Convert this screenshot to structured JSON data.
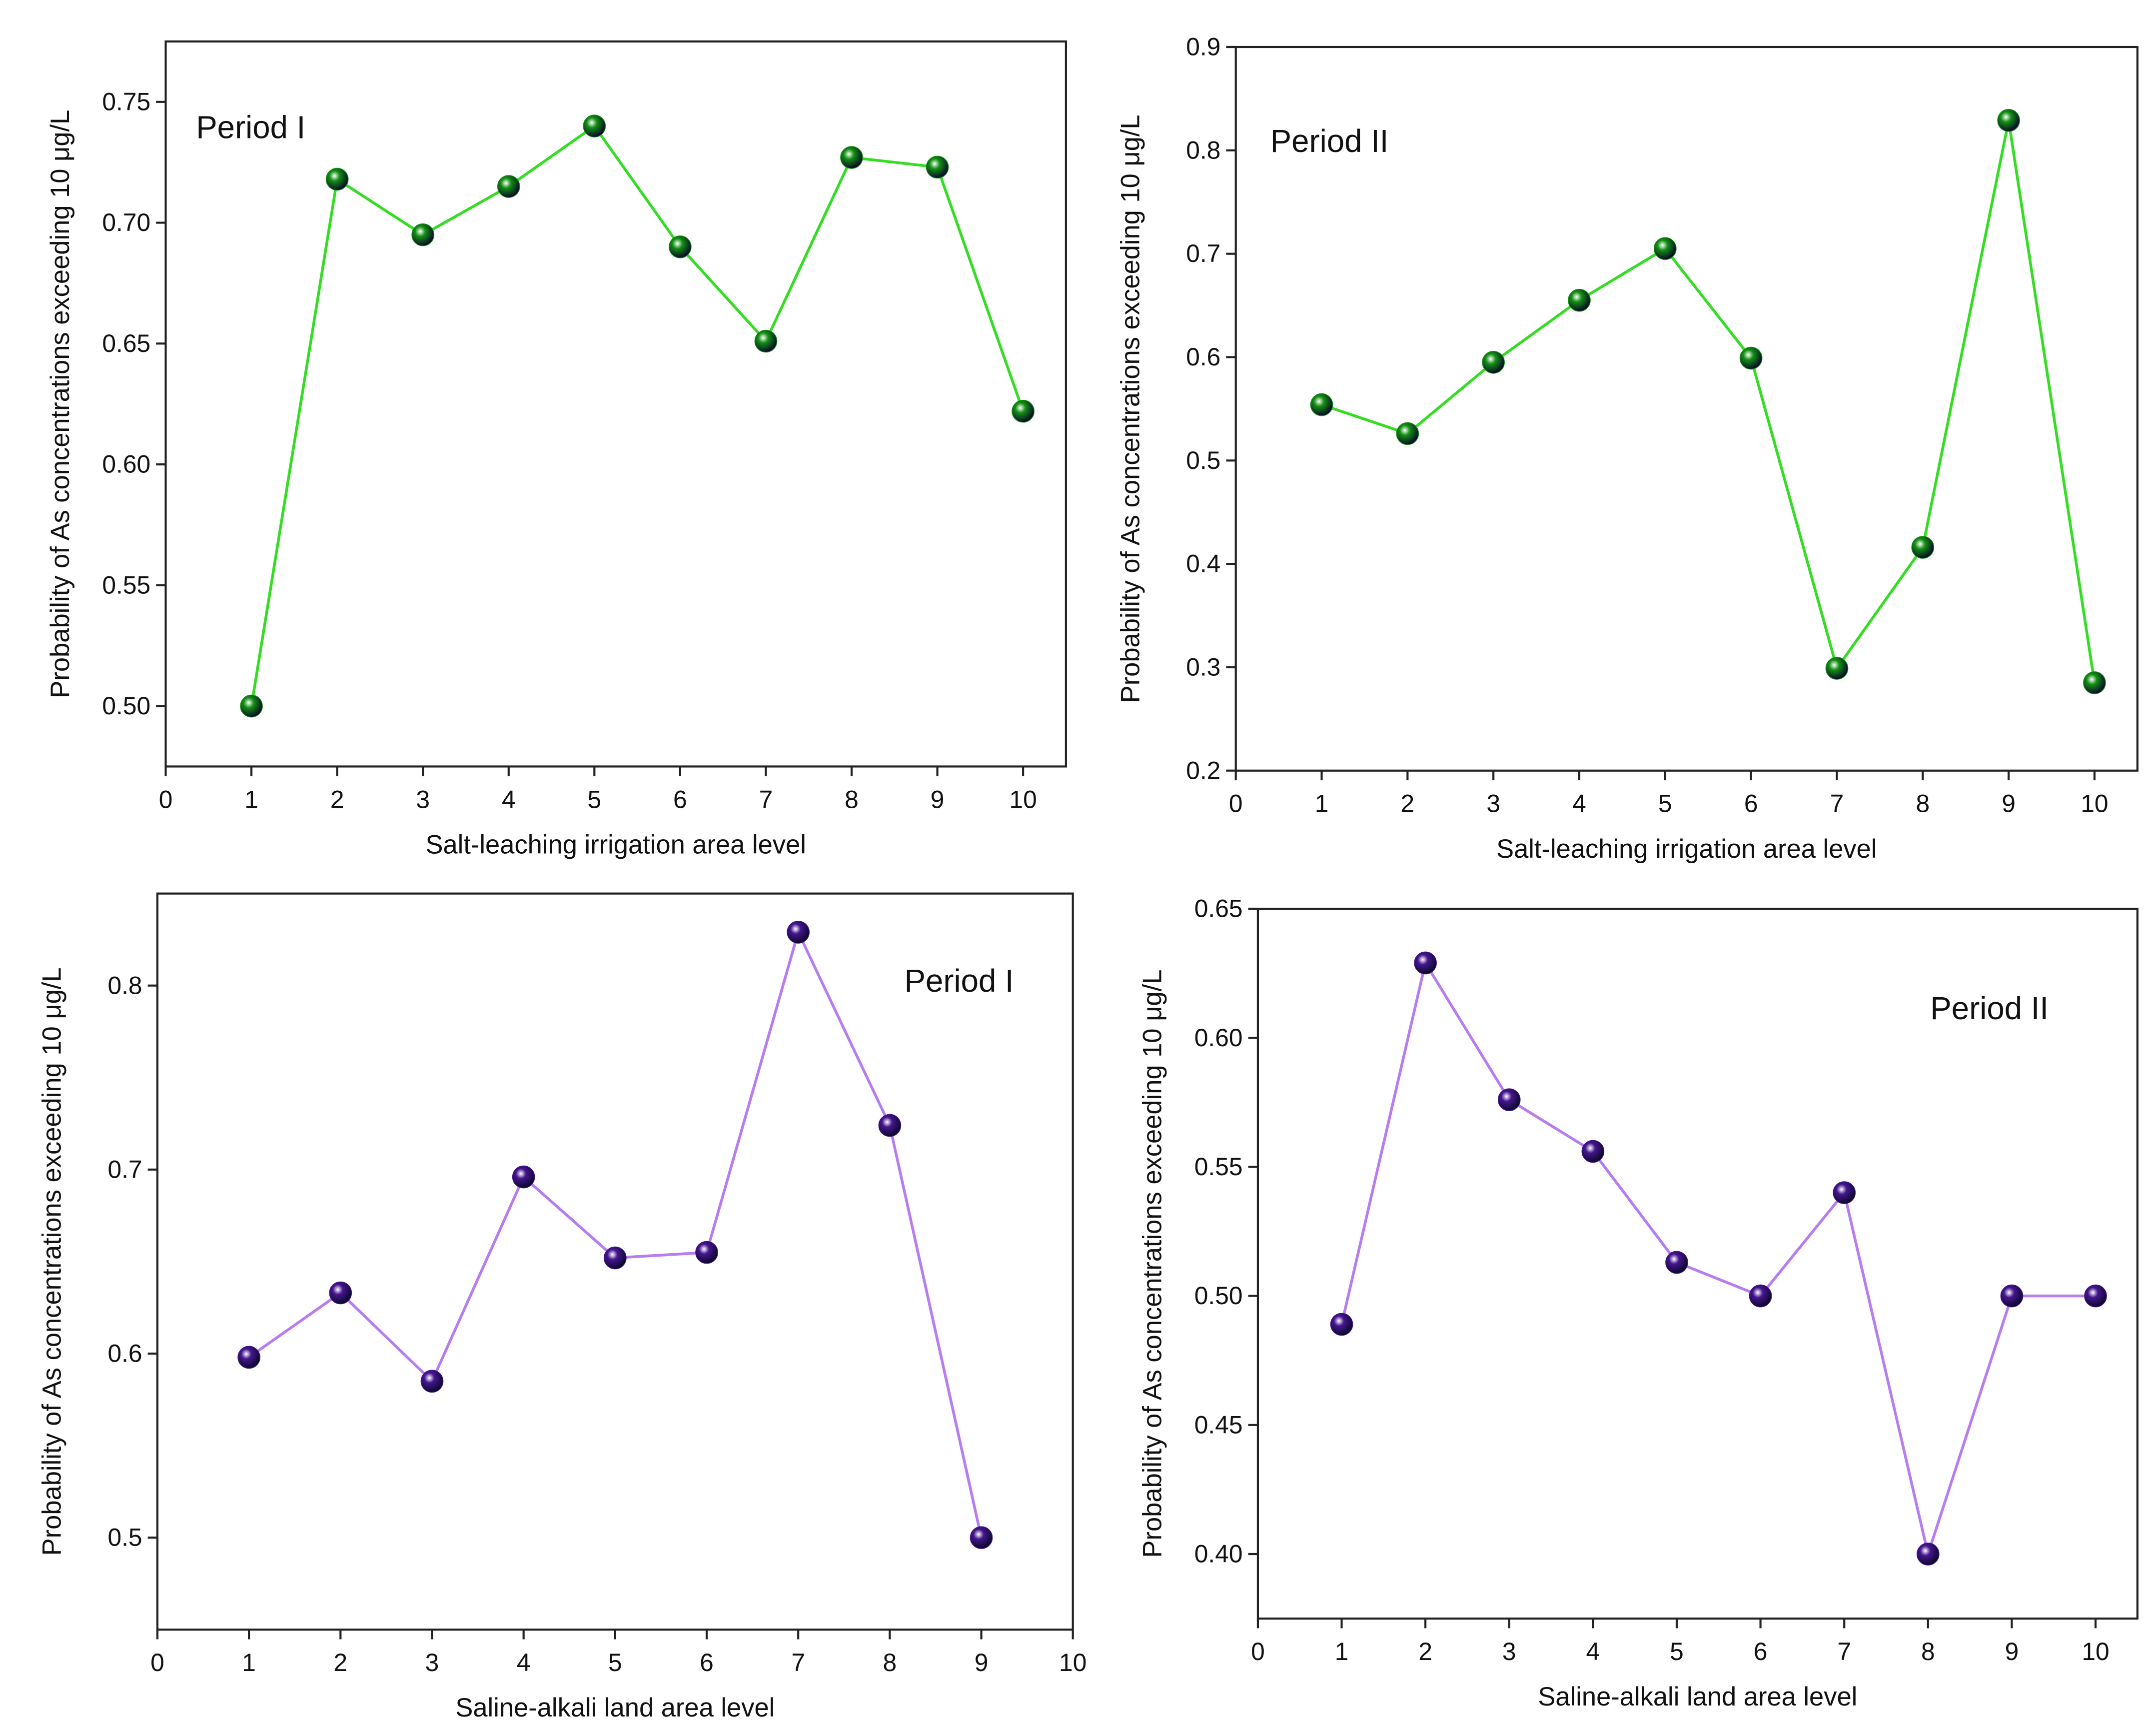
{
  "chart_data": [
    {
      "type": "line",
      "annotation": "Period I",
      "xlabel": "Salt-leaching irrigation area level",
      "ylabel": "Probability of As concentrations exceeding 10 μg/L",
      "x": [
        1,
        2,
        3,
        4,
        5,
        6,
        7,
        8,
        9,
        10
      ],
      "values": [
        0.5,
        0.718,
        0.695,
        0.715,
        0.74,
        0.69,
        0.651,
        0.727,
        0.723,
        0.622
      ],
      "color": "#33dd22",
      "marker_color": "#139013",
      "xlim": [
        0,
        10.5
      ],
      "ylim": [
        0.475,
        0.775
      ],
      "xticks": [
        0,
        1,
        2,
        3,
        4,
        5,
        6,
        7,
        8,
        9,
        10
      ],
      "yticks": [
        {
          "value": 0.5,
          "label": "0.50"
        },
        0.55,
        {
          "value": 0.6,
          "label": "0.60"
        },
        0.65,
        {
          "value": 0.7,
          "label": "0.70"
        },
        0.75
      ]
    },
    {
      "type": "line",
      "annotation": "Period II",
      "xlabel": "Salt-leaching irrigation area level",
      "ylabel": "Probability of As concentrations exceeding 10 μg/L",
      "x": [
        1,
        2,
        3,
        4,
        5,
        6,
        7,
        8,
        9,
        10
      ],
      "values": [
        0.554,
        0.526,
        0.595,
        0.655,
        0.705,
        0.599,
        0.299,
        0.416,
        0.829,
        0.285
      ],
      "color": "#33dd22",
      "marker_color": "#139013",
      "xlim": [
        0,
        10.5
      ],
      "ylim": [
        0.2,
        0.9
      ],
      "xticks": [
        0,
        1,
        2,
        3,
        4,
        5,
        6,
        7,
        8,
        9,
        10
      ],
      "yticks": [
        0.2,
        0.3,
        0.4,
        0.5,
        0.6,
        0.7,
        0.8,
        0.9
      ]
    },
    {
      "type": "line",
      "annotation": "Period I",
      "xlabel": "Saline-alkali land area level",
      "ylabel": "Probability of As concentrations exceeding 10 μg/L",
      "x": [
        1,
        2,
        3,
        4,
        5,
        6,
        7,
        8,
        9
      ],
      "values": [
        0.598,
        0.633,
        0.585,
        0.696,
        0.652,
        0.655,
        0.829,
        0.724,
        0.5
      ],
      "color": "#b77cf0",
      "marker_color": "#45158f",
      "xlim": [
        0,
        10
      ],
      "ylim": [
        0.45,
        0.85
      ],
      "xticks": [
        0,
        1,
        2,
        3,
        4,
        5,
        6,
        7,
        8,
        9,
        10
      ],
      "yticks": [
        0.5,
        0.6,
        0.7,
        0.8
      ]
    },
    {
      "type": "line",
      "annotation": "Period II",
      "xlabel": "Saline-alkali land area level",
      "ylabel": "Probability of As concentrations exceeding 10 μg/L",
      "x": [
        1,
        2,
        3,
        4,
        5,
        6,
        7,
        8,
        9,
        10
      ],
      "values": [
        0.489,
        0.629,
        0.576,
        0.556,
        0.513,
        0.5,
        0.54,
        0.4,
        0.5,
        0.5
      ],
      "color": "#b77cf0",
      "marker_color": "#45158f",
      "xlim": [
        0,
        10.5
      ],
      "ylim": [
        0.375,
        0.65
      ],
      "xticks": [
        0,
        1,
        2,
        3,
        4,
        5,
        6,
        7,
        8,
        9,
        10
      ],
      "yticks": [
        {
          "value": 0.4,
          "label": "0.40"
        },
        0.45,
        {
          "value": 0.5,
          "label": "0.50"
        },
        0.55,
        {
          "value": 0.6,
          "label": "0.60"
        },
        0.65
      ]
    }
  ]
}
